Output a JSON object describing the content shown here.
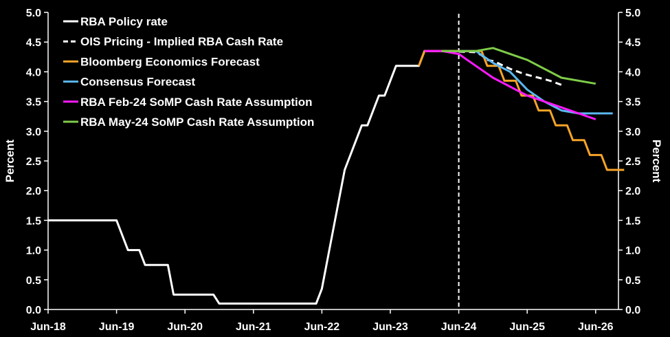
{
  "chart_data": {
    "type": "line",
    "xlabel": "",
    "ylabel_left": "Percent",
    "ylabel_right": "Percent",
    "ylim": [
      0,
      5
    ],
    "y_ticks": [
      0,
      0.5,
      1,
      1.5,
      2,
      2.5,
      3,
      3.5,
      4,
      4.5,
      5
    ],
    "y_tick_labels": [
      "0.0",
      "0.5",
      "1.0",
      "1.5",
      "2.0",
      "2.5",
      "3.0",
      "3.5",
      "4.0",
      "4.5",
      "5.0"
    ],
    "xlim": [
      "2018-06",
      "2026-10"
    ],
    "x_ticks": [
      "2018-06",
      "2019-06",
      "2020-06",
      "2021-06",
      "2022-06",
      "2023-06",
      "2024-06",
      "2025-06",
      "2026-06"
    ],
    "x_tick_labels": [
      "Jun-18",
      "Jun-19",
      "Jun-20",
      "Jun-21",
      "Jun-22",
      "Jun-23",
      "Jun-24",
      "Jun-25",
      "Jun-26"
    ],
    "vertical_marker": {
      "x": "2024-06",
      "style": "dashed",
      "color": "#ffffff"
    },
    "legend_position": "top-left",
    "grid": false,
    "series": [
      {
        "name": "RBA Policy rate",
        "color": "#ffffff",
        "style": "solid",
        "points": [
          [
            "2018-06",
            1.5
          ],
          [
            "2019-06",
            1.5
          ],
          [
            "2019-07",
            1.25
          ],
          [
            "2019-08",
            1.0
          ],
          [
            "2019-10",
            1.0
          ],
          [
            "2019-11",
            0.75
          ],
          [
            "2020-03",
            0.75
          ],
          [
            "2020-04",
            0.25
          ],
          [
            "2020-11",
            0.25
          ],
          [
            "2020-12",
            0.1
          ],
          [
            "2022-05",
            0.1
          ],
          [
            "2022-06",
            0.35
          ],
          [
            "2022-07",
            0.85
          ],
          [
            "2022-08",
            1.35
          ],
          [
            "2022-09",
            1.85
          ],
          [
            "2022-10",
            2.35
          ],
          [
            "2022-11",
            2.6
          ],
          [
            "2022-12",
            2.85
          ],
          [
            "2023-01",
            3.1
          ],
          [
            "2023-02",
            3.1
          ],
          [
            "2023-03",
            3.35
          ],
          [
            "2023-04",
            3.6
          ],
          [
            "2023-05",
            3.6
          ],
          [
            "2023-06",
            3.85
          ],
          [
            "2023-07",
            4.1
          ],
          [
            "2023-11",
            4.1
          ],
          [
            "2023-12",
            4.35
          ],
          [
            "2024-06",
            4.35
          ]
        ]
      },
      {
        "name": "OIS Pricing - Implied RBA Cash Rate",
        "color": "#ffffff",
        "style": "dashed",
        "points": [
          [
            "2024-06",
            4.34
          ],
          [
            "2024-09",
            4.33
          ],
          [
            "2024-10",
            4.28
          ],
          [
            "2024-11",
            4.2
          ],
          [
            "2024-12",
            4.18
          ],
          [
            "2025-01",
            4.14
          ],
          [
            "2025-03",
            4.05
          ],
          [
            "2025-05",
            3.98
          ],
          [
            "2025-06",
            3.95
          ],
          [
            "2025-08",
            3.9
          ],
          [
            "2025-10",
            3.85
          ],
          [
            "2025-12",
            3.78
          ]
        ]
      },
      {
        "name": "Bloomberg Economics Forecast",
        "color": "#f7a428",
        "style": "solid",
        "points": [
          [
            "2023-11",
            4.1
          ],
          [
            "2023-12",
            4.35
          ],
          [
            "2024-10",
            4.35
          ],
          [
            "2024-11",
            4.1
          ],
          [
            "2025-01",
            4.1
          ],
          [
            "2025-02",
            3.85
          ],
          [
            "2025-04",
            3.85
          ],
          [
            "2025-05",
            3.6
          ],
          [
            "2025-07",
            3.6
          ],
          [
            "2025-08",
            3.35
          ],
          [
            "2025-10",
            3.35
          ],
          [
            "2025-11",
            3.1
          ],
          [
            "2026-01",
            3.1
          ],
          [
            "2026-02",
            2.85
          ],
          [
            "2026-04",
            2.85
          ],
          [
            "2026-05",
            2.6
          ],
          [
            "2026-07",
            2.6
          ],
          [
            "2026-08",
            2.35
          ],
          [
            "2026-11",
            2.35
          ]
        ]
      },
      {
        "name": "Consensus Forecast",
        "color": "#5bb8f0",
        "style": "solid",
        "points": [
          [
            "2024-06",
            4.35
          ],
          [
            "2024-09",
            4.35
          ],
          [
            "2024-12",
            4.15
          ],
          [
            "2025-03",
            4.0
          ],
          [
            "2025-06",
            3.7
          ],
          [
            "2025-09",
            3.5
          ],
          [
            "2025-12",
            3.35
          ],
          [
            "2026-03",
            3.3
          ],
          [
            "2026-09",
            3.3
          ]
        ]
      },
      {
        "name": "RBA Feb-24 SoMP Cash Rate Assumption",
        "color": "#ff1aff",
        "style": "solid",
        "points": [
          [
            "2023-12",
            4.35
          ],
          [
            "2024-03",
            4.35
          ],
          [
            "2024-06",
            4.3
          ],
          [
            "2024-09",
            4.1
          ],
          [
            "2024-12",
            3.9
          ],
          [
            "2025-06",
            3.6
          ],
          [
            "2025-12",
            3.4
          ],
          [
            "2026-06",
            3.2
          ]
        ]
      },
      {
        "name": "RBA May-24 SoMP Cash Rate Assumption",
        "color": "#7fcc4a",
        "style": "solid",
        "points": [
          [
            "2024-03",
            4.35
          ],
          [
            "2024-06",
            4.35
          ],
          [
            "2024-09",
            4.35
          ],
          [
            "2024-12",
            4.4
          ],
          [
            "2025-06",
            4.2
          ],
          [
            "2025-12",
            3.9
          ],
          [
            "2026-06",
            3.8
          ]
        ]
      }
    ]
  }
}
